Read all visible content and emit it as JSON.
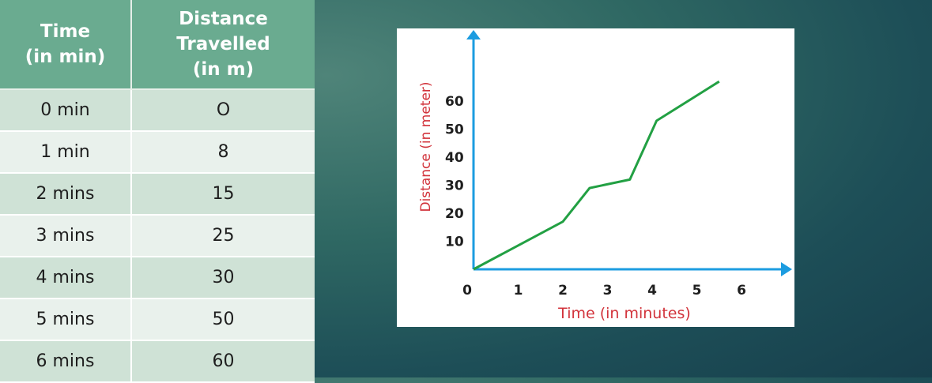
{
  "table": {
    "headers": [
      [
        "Time",
        "(in min)"
      ],
      [
        "Distance",
        "Travelled",
        "(in m)"
      ]
    ],
    "rows": [
      [
        "0 min",
        "O"
      ],
      [
        "1 min",
        "8"
      ],
      [
        "2 mins",
        "15"
      ],
      [
        "3 mins",
        "25"
      ],
      [
        "4 mins",
        "30"
      ],
      [
        "5 mins",
        "50"
      ],
      [
        "6 mins",
        "60"
      ]
    ]
  },
  "chart_data": {
    "type": "line",
    "xlabel": "Time (in minutes)",
    "ylabel": "Distance (in meter)",
    "x_ticks": [
      "0",
      "1",
      "2",
      "3",
      "4",
      "5",
      "6"
    ],
    "y_ticks": [
      "10",
      "20",
      "30",
      "40",
      "50",
      "60"
    ],
    "xlim": [
      0,
      6
    ],
    "ylim": [
      0,
      60
    ],
    "grid": false,
    "series": [
      {
        "x": [
          0,
          2,
          2.6,
          3.5,
          4.1,
          5.5
        ],
        "y": [
          0,
          17,
          29,
          32,
          53,
          67
        ],
        "color": "#22a043"
      }
    ],
    "colors": {
      "axis": "#1c9ce0",
      "label": "#d2333b",
      "tick": "#1e1e1e"
    }
  }
}
